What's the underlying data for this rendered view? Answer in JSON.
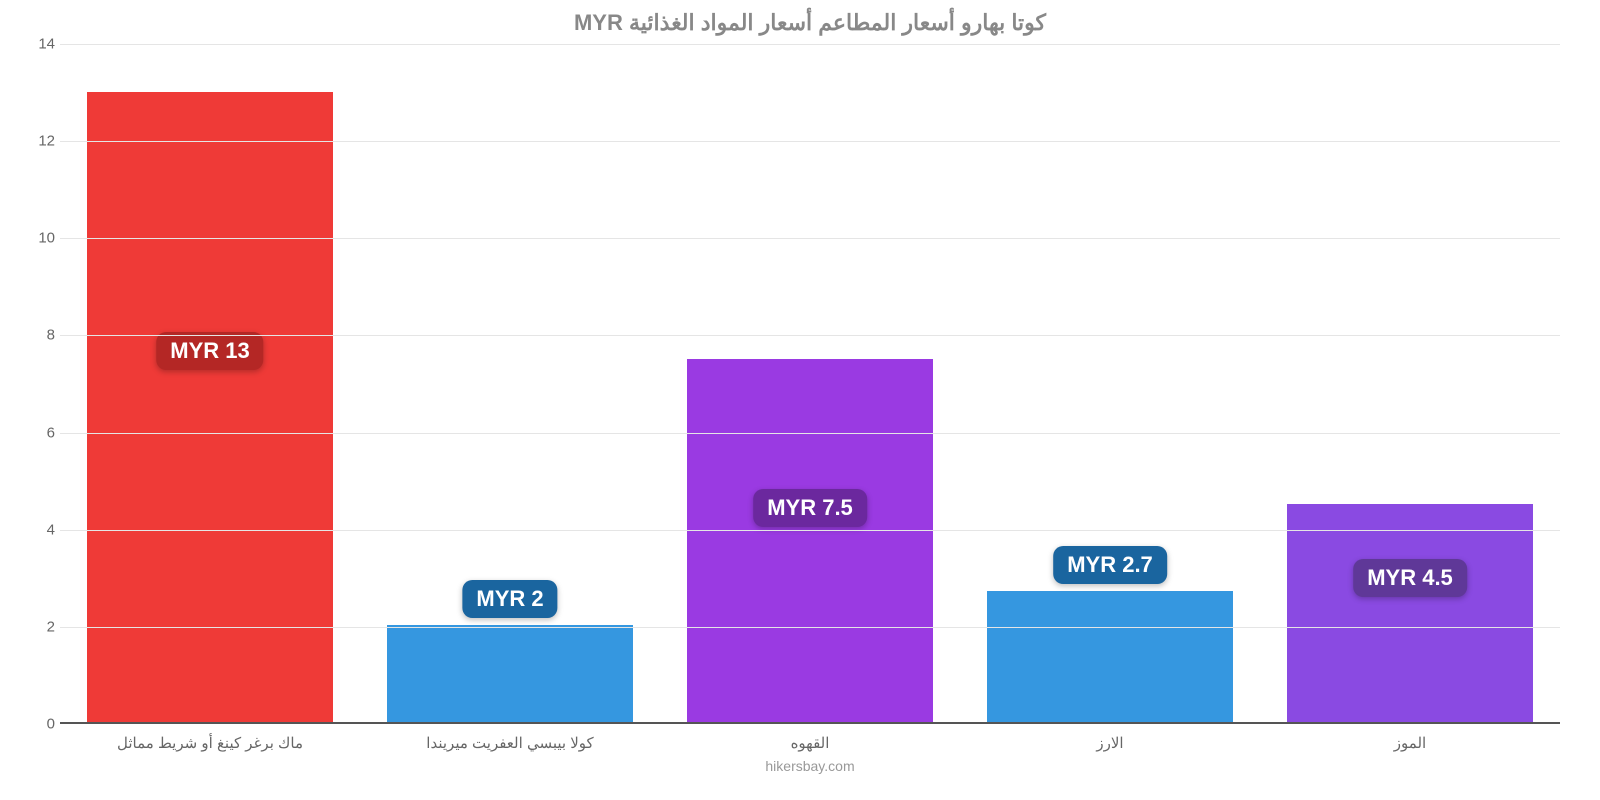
{
  "chart": {
    "type": "bar",
    "title": "كوتا بهارو أسعار المطاعم أسعار المواد الغذائية MYR",
    "title_color": "#888888",
    "title_fontsize": 22,
    "credit": "hikersbay.com",
    "credit_color": "#999999",
    "background_color": "#ffffff",
    "grid_color": "#e5e5e5",
    "axis_color": "#555555",
    "axis_label_color": "#666666",
    "axis_label_fontsize": 15,
    "ymin": 0,
    "ymax": 14,
    "ytick_step": 2,
    "yticks": [
      "0",
      "2",
      "4",
      "6",
      "8",
      "10",
      "12",
      "14"
    ],
    "bar_width_pct": 82,
    "badge_fontsize": 22,
    "badge_text_color": "#ffffff",
    "bars": [
      {
        "category": "ماك برغر كينغ أو شريط مماثل",
        "value": 13,
        "value_label": "MYR 13",
        "bar_color": "#ef3a37",
        "badge_color": "#b42725",
        "badge_offset": 240
      },
      {
        "category": "كولا بيبسي العفريت ميريندا",
        "value": 2,
        "value_label": "MYR 2",
        "bar_color": "#3597e0",
        "badge_color": "#1a659f",
        "badge_offset": -45
      },
      {
        "category": "القهوه",
        "value": 7.5,
        "value_label": "MYR 7.5",
        "bar_color": "#9a3ae2",
        "badge_color": "#6b289e",
        "badge_offset": 130
      },
      {
        "category": "الارز",
        "value": 2.7,
        "value_label": "MYR 2.7",
        "bar_color": "#3597e0",
        "badge_color": "#1a659f",
        "badge_offset": -45
      },
      {
        "category": "الموز",
        "value": 4.5,
        "value_label": "MYR 4.5",
        "bar_color": "#8a4ae2",
        "badge_color": "#5f3898",
        "badge_offset": 55
      }
    ]
  }
}
